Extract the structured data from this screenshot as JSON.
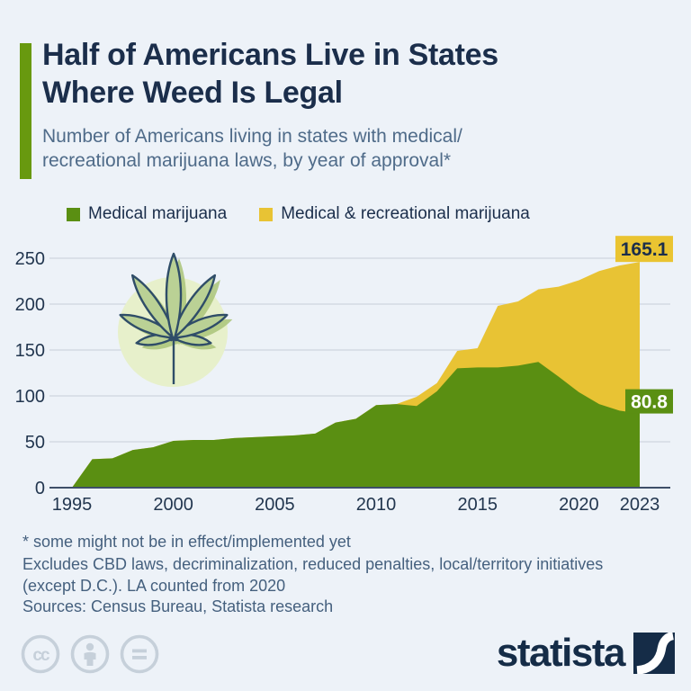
{
  "header": {
    "title_line1": "Half of Americans Live in States",
    "title_line2": "Where Weed Is Legal",
    "subtitle_line1": "Number of Americans living in states with medical/",
    "subtitle_line2": "recreational marijuana laws, by year of approval*"
  },
  "legend": [
    {
      "label": "Medical marijuana",
      "color": "#5a8f12"
    },
    {
      "label": "Medical & recreational marijuana",
      "color": "#e8c334"
    }
  ],
  "chart_data": {
    "type": "area",
    "stacked": true,
    "title": "Number of Americans living in states with medical/recreational marijuana laws, by year of approval",
    "xlabel": "",
    "ylabel": "",
    "grid": true,
    "ylim": [
      0,
      250
    ],
    "yticks": [
      0,
      50,
      100,
      150,
      200,
      250
    ],
    "x_tick_years": [
      1995,
      2000,
      2005,
      2010,
      2015,
      2020,
      2023
    ],
    "x": [
      1995,
      1996,
      1997,
      1998,
      1999,
      2000,
      2001,
      2002,
      2003,
      2004,
      2005,
      2006,
      2007,
      2008,
      2009,
      2010,
      2011,
      2012,
      2013,
      2014,
      2015,
      2016,
      2017,
      2018,
      2019,
      2020,
      2021,
      2022,
      2023
    ],
    "series": [
      {
        "name": "Medical marijuana",
        "color": "#5a8f12",
        "values": [
          0,
          31,
          32,
          41,
          44,
          51,
          52,
          52,
          54,
          55,
          56,
          57,
          59,
          71,
          75,
          90,
          91,
          89,
          105,
          130,
          131,
          131,
          133,
          137,
          121,
          104,
          91,
          84,
          80.8
        ]
      },
      {
        "name": "Medical & recreational marijuana",
        "color": "#e8c334",
        "values": [
          0,
          0,
          0,
          0,
          0,
          0,
          0,
          0,
          0,
          0,
          0,
          0,
          0,
          0,
          0,
          0,
          0,
          10,
          9,
          19,
          21,
          67,
          70,
          79,
          98,
          122,
          145,
          158,
          165.1
        ]
      }
    ],
    "value_labels": [
      {
        "text": "165.1",
        "series": "Medical & recreational marijuana",
        "bg": "#eac431",
        "color": "#1b2e4b"
      },
      {
        "text": "80.8",
        "series": "Medical marijuana",
        "bg": "#5a8f12",
        "color": "#ffffff"
      }
    ],
    "axis_colors": {
      "gridline": "#cfd5dd",
      "baseline": "#3e4f68",
      "tick_text": "#22364f"
    }
  },
  "footnotes": {
    "line1": "* some might not be in effect/implemented yet",
    "line2": "Excludes CBD laws, decriminalization, reduced penalties, local/territory initiatives",
    "line3": "(except D.C.). LA counted from 2020",
    "sources": "Sources: Census Bureau, Statista research"
  },
  "footer": {
    "license_icons": [
      "cc",
      "attribution",
      "no-derivatives"
    ],
    "logo_text": "statista"
  }
}
